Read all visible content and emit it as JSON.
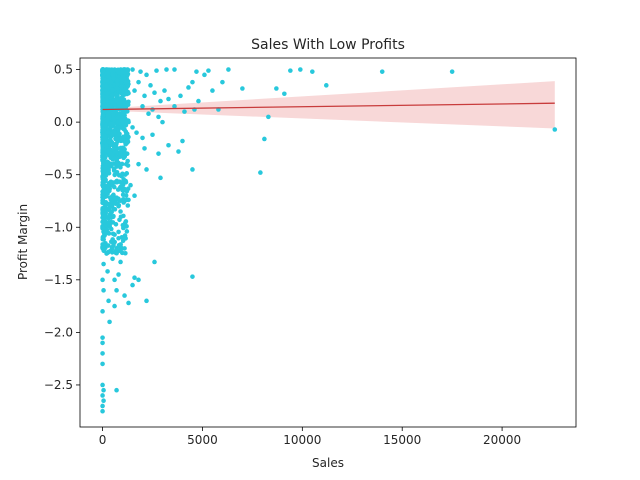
{
  "chart_data": {
    "type": "scatter",
    "title": "Sales With Low Profits",
    "xlabel": "Sales",
    "ylabel": "Profit Margin",
    "xlim": [
      -1130,
      23700
    ],
    "ylim": [
      -2.9,
      0.61
    ],
    "xticks": [
      0,
      5000,
      10000,
      15000,
      20000
    ],
    "yticks": [
      -2.5,
      -2.0,
      -1.5,
      -1.0,
      -0.5,
      0.0,
      0.5
    ],
    "grid": false,
    "colors": {
      "points": "#28c8dc",
      "regression_line": "#c83c3c",
      "confidence_band": "#f5c8c8"
    },
    "regression": {
      "x": [
        0,
        22638
      ],
      "y": [
        0.12,
        0.18
      ],
      "ci_upper": [
        0.13,
        0.39
      ],
      "ci_lower": [
        0.11,
        -0.06
      ]
    },
    "series": [
      {
        "points": [
          [
            1500,
            0.5
          ],
          [
            1900,
            0.48
          ],
          [
            2200,
            0.45
          ],
          [
            2700,
            0.49
          ],
          [
            3200,
            0.5
          ],
          [
            3600,
            0.5
          ],
          [
            4700,
            0.48
          ],
          [
            5300,
            0.49
          ],
          [
            6300,
            0.5
          ],
          [
            9400,
            0.49
          ],
          [
            9900,
            0.5
          ],
          [
            10500,
            0.48
          ],
          [
            14000,
            0.48
          ],
          [
            17500,
            0.48
          ],
          [
            1200,
            0.42
          ],
          [
            1600,
            0.3
          ],
          [
            1800,
            0.38
          ],
          [
            2100,
            0.25
          ],
          [
            2400,
            0.35
          ],
          [
            2600,
            0.28
          ],
          [
            2900,
            0.2
          ],
          [
            3100,
            0.3
          ],
          [
            3300,
            0.22
          ],
          [
            3600,
            0.15
          ],
          [
            3900,
            0.25
          ],
          [
            4100,
            0.1
          ],
          [
            4300,
            0.33
          ],
          [
            4500,
            0.38
          ],
          [
            4600,
            0.12
          ],
          [
            4800,
            0.2
          ],
          [
            5100,
            0.45
          ],
          [
            5500,
            0.3
          ],
          [
            7000,
            0.32
          ],
          [
            8700,
            0.32
          ],
          [
            9100,
            0.27
          ],
          [
            11200,
            0.35
          ],
          [
            5800,
            0.12
          ],
          [
            6000,
            0.38
          ],
          [
            2000,
            0.15
          ],
          [
            2300,
            0.08
          ],
          [
            2500,
            0.12
          ],
          [
            2800,
            0.05
          ],
          [
            3000,
            0.0
          ],
          [
            1300,
            0.0
          ],
          [
            1500,
            -0.05
          ],
          [
            1700,
            -0.1
          ],
          [
            2000,
            -0.15
          ],
          [
            2100,
            -0.25
          ],
          [
            2500,
            -0.12
          ],
          [
            2800,
            -0.3
          ],
          [
            3300,
            -0.22
          ],
          [
            1800,
            -0.4
          ],
          [
            2200,
            -0.45
          ],
          [
            2900,
            -0.53
          ],
          [
            3800,
            -0.28
          ],
          [
            4000,
            -0.18
          ],
          [
            4500,
            -0.45
          ],
          [
            1400,
            -0.6
          ],
          [
            1600,
            -0.7
          ],
          [
            1200,
            -0.65
          ],
          [
            8300,
            0.05
          ],
          [
            8100,
            -0.16
          ],
          [
            7900,
            -0.48
          ],
          [
            1000,
            -0.5
          ],
          [
            1100,
            -0.75
          ],
          [
            900,
            -0.85
          ],
          [
            800,
            -0.8
          ],
          [
            600,
            -1.07
          ],
          [
            700,
            -1.2
          ],
          [
            500,
            -1.3
          ],
          [
            600,
            -1.5
          ],
          [
            800,
            -1.45
          ],
          [
            900,
            -1.33
          ],
          [
            700,
            -1.6
          ],
          [
            600,
            -1.75
          ],
          [
            1100,
            -1.65
          ],
          [
            1300,
            -1.72
          ],
          [
            1500,
            -1.55
          ],
          [
            1600,
            -1.48
          ],
          [
            1800,
            -1.5
          ],
          [
            2200,
            -1.7
          ],
          [
            2600,
            -1.33
          ],
          [
            4500,
            -1.47
          ],
          [
            700,
            -2.55
          ],
          [
            0,
            -1.0
          ],
          [
            0,
            -1.2
          ],
          [
            0,
            -1.5
          ],
          [
            0,
            -1.8
          ],
          [
            0,
            -2.05
          ],
          [
            0,
            -2.1
          ],
          [
            0,
            -2.2
          ],
          [
            0,
            -2.3
          ],
          [
            0,
            -2.5
          ],
          [
            0,
            -2.6
          ],
          [
            0,
            -2.7
          ],
          [
            0,
            -2.75
          ],
          [
            50,
            -2.65
          ],
          [
            50,
            -2.55
          ],
          [
            50,
            -1.35
          ],
          [
            50,
            -1.6
          ],
          [
            150,
            -1.05
          ],
          [
            200,
            -1.25
          ],
          [
            250,
            -1.42
          ],
          [
            300,
            -1.7
          ],
          [
            350,
            -1.9
          ],
          [
            22638,
            -0.07
          ]
        ]
      }
    ]
  }
}
